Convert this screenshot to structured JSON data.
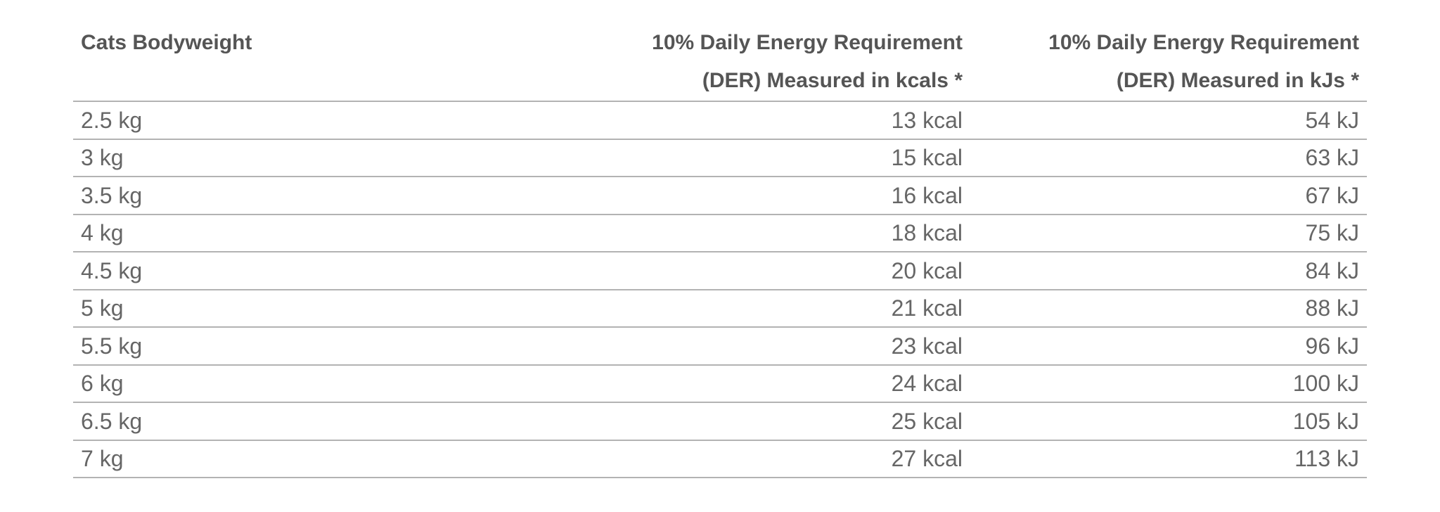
{
  "table": {
    "header": [
      "Cats Bodyweight",
      "10% Daily Energy Requirement (DER) Measured in kcals *",
      "10% Daily Energy Requirement (DER) Measured in kJs *"
    ],
    "rows": [
      [
        "2.5 kg",
        "13 kcal",
        "54 kJ"
      ],
      [
        "3 kg",
        "15 kcal",
        "63 kJ"
      ],
      [
        "3.5 kg",
        "16 kcal",
        "67 kJ"
      ],
      [
        "4 kg",
        "18 kcal",
        "75 kJ"
      ],
      [
        "4.5 kg",
        "20 kcal",
        "84 kJ"
      ],
      [
        "5 kg",
        "21 kcal",
        "88 kJ"
      ],
      [
        "5.5 kg",
        "23 kcal",
        "96 kJ"
      ],
      [
        "6 kg",
        "24 kcal",
        "100 kJ"
      ],
      [
        "6.5 kg",
        "25 kcal",
        "105 kJ"
      ],
      [
        "7 kg",
        "27 kcal",
        "113 kJ"
      ]
    ]
  }
}
